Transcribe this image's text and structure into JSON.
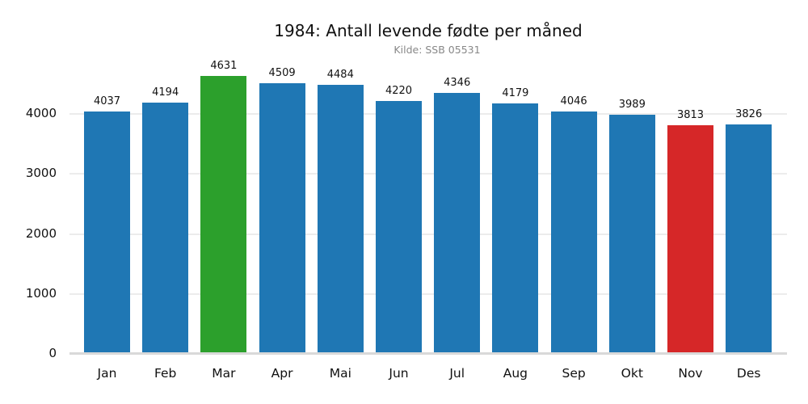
{
  "title": "1984: Antall levende fødte per måned",
  "subtitle": "Kilde: SSB 05531",
  "colors": {
    "default": "#1f77b4",
    "max": "#2ca02c",
    "min": "#d62728",
    "grid": "#ececec",
    "axis": "#d9d9d9"
  },
  "chart_data": {
    "type": "bar",
    "title": "1984: Antall levende fødte per måned",
    "subtitle": "Kilde: SSB 05531",
    "xlabel": "",
    "ylabel": "",
    "categories": [
      "Jan",
      "Feb",
      "Mar",
      "Apr",
      "Mai",
      "Jun",
      "Jul",
      "Aug",
      "Sep",
      "Okt",
      "Nov",
      "Des"
    ],
    "values": [
      4037,
      4194,
      4631,
      4509,
      4484,
      4220,
      4346,
      4179,
      4046,
      3989,
      3813,
      3826
    ],
    "highlight": {
      "max_index": 2,
      "max_color": "#2ca02c",
      "min_index": 10,
      "min_color": "#d62728"
    },
    "bar_color": "#1f77b4",
    "yticks": [
      0,
      1000,
      2000,
      3000,
      4000
    ],
    "ylim": [
      0,
      4700
    ],
    "grid": "horizontal",
    "legend": "none",
    "data_labels": true
  }
}
